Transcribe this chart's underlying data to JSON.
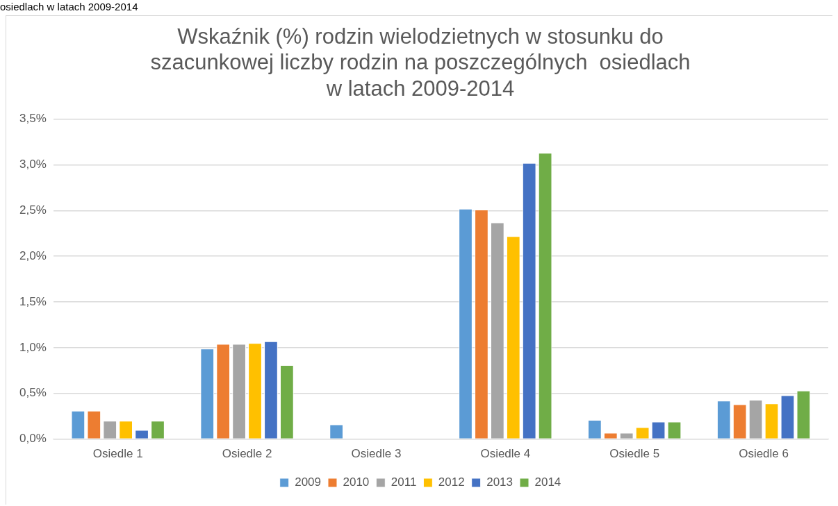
{
  "chart_data": {
    "type": "bar",
    "title": "Wskaźnik (%) rodzin wielodzietnych w stosunku do\nszacunkowej liczby rodzin na poszczególnych  osiedlach\nw latach 2009-2014",
    "annotations": [
      "osiedlach w latach 2009-2014"
    ],
    "categories": [
      "Osiedle 1",
      "Osiedle 2",
      "Osiedle 3",
      "Osiedle 4",
      "Osiedle 5",
      "Osiedle 6"
    ],
    "series": [
      {
        "name": "2009",
        "color": "#5b9bd5",
        "values": [
          0.31,
          0.99,
          0.16,
          2.52,
          0.21,
          0.42
        ]
      },
      {
        "name": "2010",
        "color": "#ed7d31",
        "values": [
          0.31,
          1.04,
          0,
          2.51,
          0.07,
          0.38
        ]
      },
      {
        "name": "2011",
        "color": "#a5a5a5",
        "values": [
          0.2,
          1.04,
          0,
          2.37,
          0.07,
          0.43
        ]
      },
      {
        "name": "2012",
        "color": "#ffc000",
        "values": [
          0.2,
          1.05,
          0,
          2.22,
          0.13,
          0.39
        ]
      },
      {
        "name": "2013",
        "color": "#4472c4",
        "values": [
          0.1,
          1.07,
          0,
          3.02,
          0.19,
          0.48
        ]
      },
      {
        "name": "2014",
        "color": "#70ad47",
        "values": [
          0.2,
          0.81,
          0,
          3.13,
          0.19,
          0.53
        ]
      }
    ],
    "ylim": [
      0,
      3.5
    ],
    "yticks": [
      {
        "value": 0,
        "label": "0,0%"
      },
      {
        "value": 0.5,
        "label": "0,5%"
      },
      {
        "value": 1,
        "label": "1,0%"
      },
      {
        "value": 1.5,
        "label": "1,5%"
      },
      {
        "value": 2,
        "label": "2,0%"
      },
      {
        "value": 2.5,
        "label": "2,5%"
      },
      {
        "value": 3,
        "label": "3,0%"
      },
      {
        "value": 3.5,
        "label": "3,5%"
      }
    ],
    "grid": "y",
    "legend": "bottom"
  }
}
